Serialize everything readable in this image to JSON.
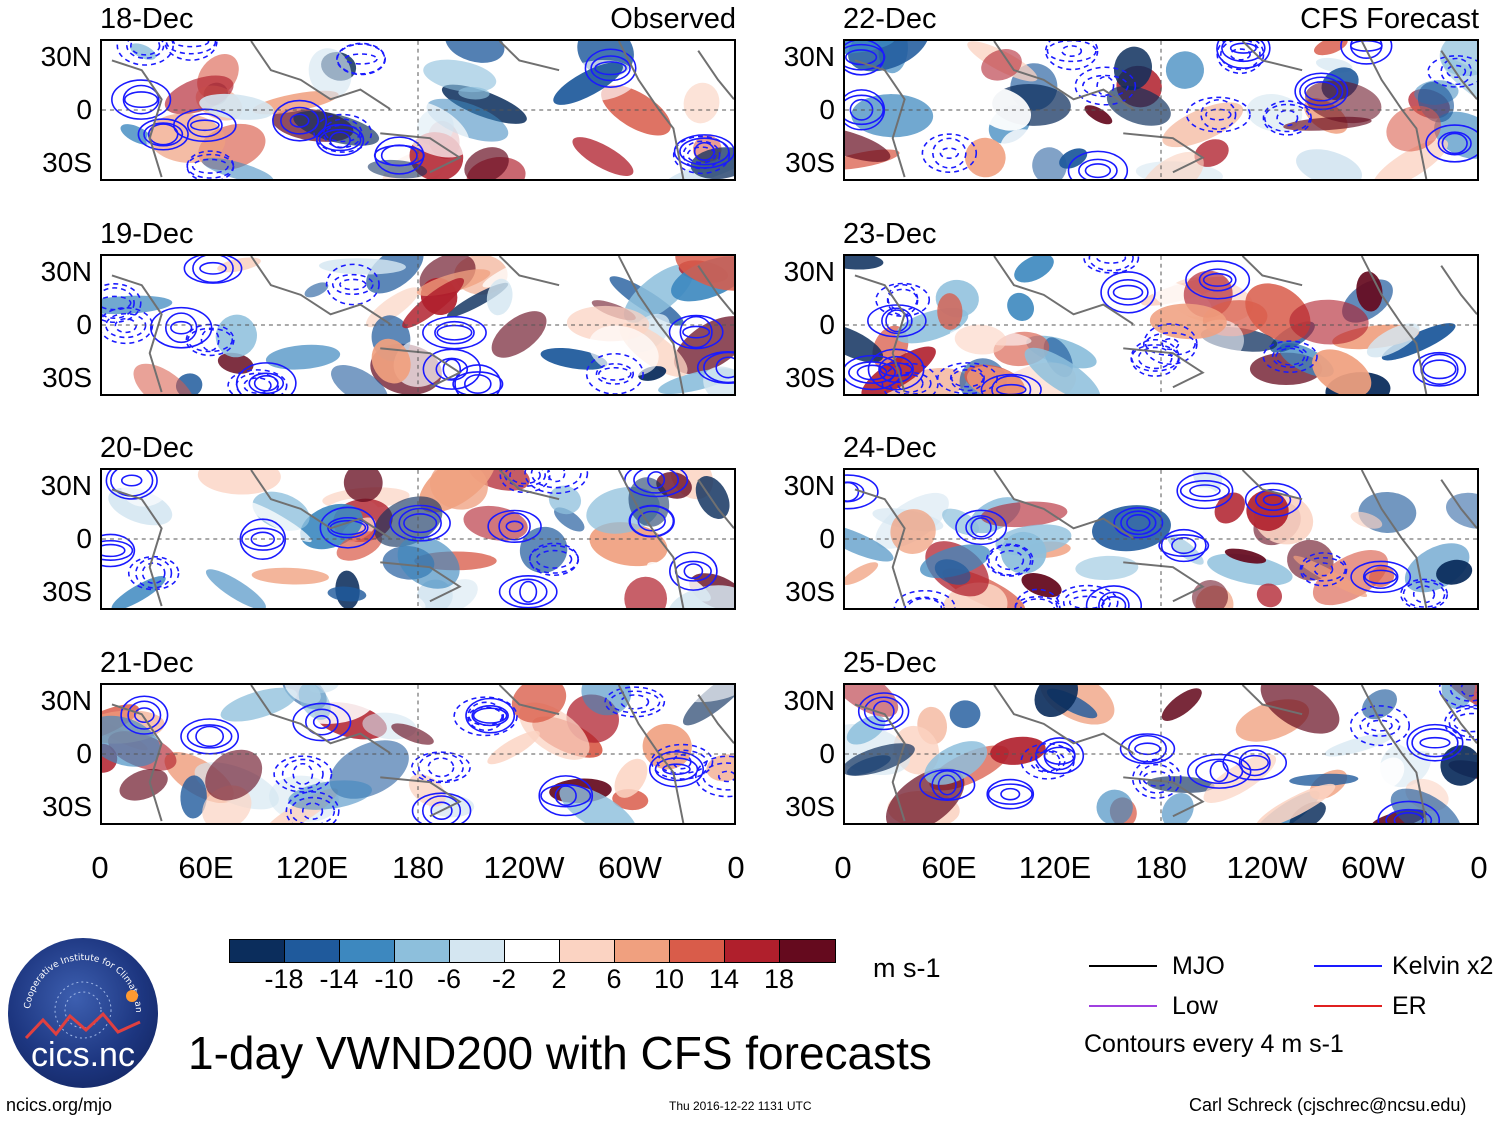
{
  "chart_data": {
    "type": "heatmap",
    "title": "1-day VWND200 with CFS forecasts",
    "variable": "VWND200",
    "units": "m s-1",
    "observed_label": "Observed",
    "forecast_label": "CFS Forecast",
    "panels": [
      {
        "date": "18-Dec",
        "column": "observed"
      },
      {
        "date": "19-Dec",
        "column": "observed"
      },
      {
        "date": "20-Dec",
        "column": "observed"
      },
      {
        "date": "21-Dec",
        "column": "observed"
      },
      {
        "date": "22-Dec",
        "column": "forecast"
      },
      {
        "date": "23-Dec",
        "column": "forecast"
      },
      {
        "date": "24-Dec",
        "column": "forecast"
      },
      {
        "date": "25-Dec",
        "column": "forecast"
      }
    ],
    "lat_ticks": [
      "30N",
      "0",
      "30S"
    ],
    "lon_ticks": [
      "0",
      "60E",
      "120E",
      "180",
      "120W",
      "60W",
      "0"
    ],
    "lat_range": [
      -40,
      40
    ],
    "lon_range": [
      0,
      360
    ],
    "colorbar": {
      "levels": [
        -18,
        -14,
        -10,
        -6,
        -2,
        2,
        6,
        10,
        14,
        18
      ],
      "level_labels": [
        "-18",
        "-14",
        "-10",
        "-6",
        "-2",
        "2",
        "6",
        "10",
        "14",
        "18"
      ],
      "colors": [
        "#0b2d5c",
        "#1f5a9c",
        "#3d88bf",
        "#8dbfdc",
        "#d4e6f1",
        "#ffffff",
        "#fbd3c2",
        "#f0a07f",
        "#d95c4a",
        "#b01f2c",
        "#650a1e"
      ]
    },
    "contour_legend": [
      {
        "label": "MJO",
        "color": "#000000"
      },
      {
        "label": "Kelvin x2",
        "color": "#1a1aff"
      },
      {
        "label": "Low",
        "color": "#a040e0"
      },
      {
        "label": "ER",
        "color": "#e02020"
      }
    ],
    "contour_interval": "Contours every 4 m s-1"
  },
  "footer": {
    "site": "ncics.org/mjo",
    "timestamp": "Thu 2016-12-22 1131 UTC",
    "author": "Carl Schreck (cjschrec@ncsu.edu)",
    "logo_text": "cics.nc",
    "logo_ring_text": "Cooperative Institute for Climate and Satellites"
  }
}
